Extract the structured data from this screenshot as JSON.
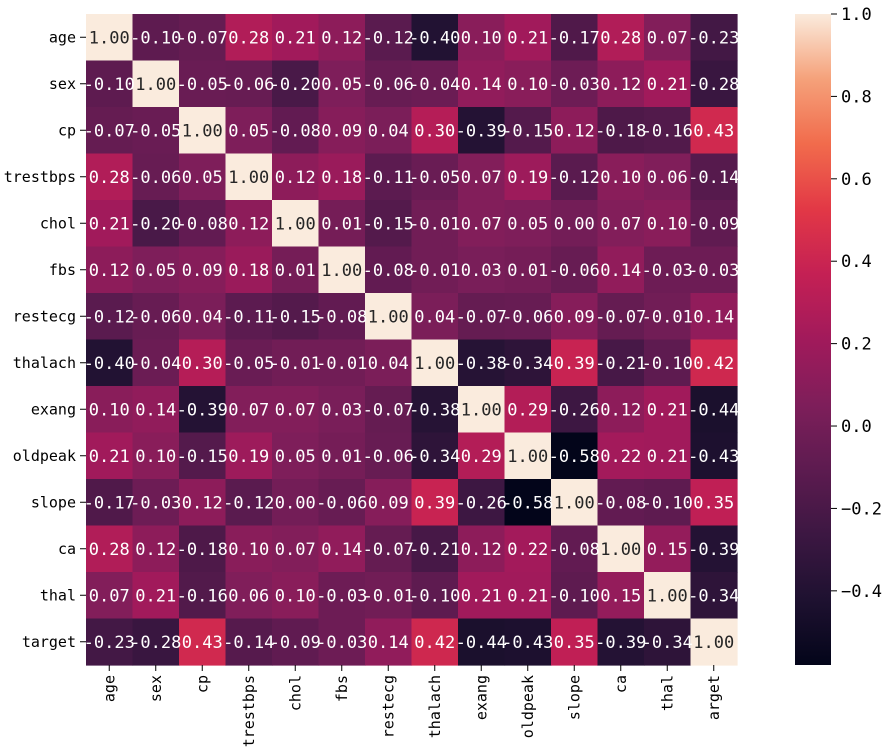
{
  "chart_data": {
    "type": "heatmap",
    "title": "",
    "xlabel": "",
    "ylabel": "",
    "x_labels": [
      "age",
      "sex",
      "cp",
      "trestbps",
      "chol",
      "fbs",
      "restecg",
      "thalach",
      "exang",
      "oldpeak",
      "slope",
      "ca",
      "thal",
      "arget"
    ],
    "y_labels": [
      "age",
      "sex",
      "cp",
      "trestbps",
      "chol",
      "fbs",
      "restecg",
      "thalach",
      "exang",
      "oldpeak",
      "slope",
      "ca",
      "thal",
      "target"
    ],
    "values": [
      [
        1.0,
        -0.1,
        -0.07,
        0.28,
        0.21,
        0.12,
        -0.12,
        -0.4,
        0.1,
        0.21,
        -0.17,
        0.28,
        0.07,
        -0.23
      ],
      [
        -0.1,
        1.0,
        -0.05,
        -0.06,
        -0.2,
        0.05,
        -0.06,
        -0.04,
        0.14,
        0.1,
        -0.03,
        0.12,
        0.21,
        -0.28
      ],
      [
        -0.07,
        -0.05,
        1.0,
        0.05,
        -0.08,
        0.09,
        0.04,
        0.3,
        -0.39,
        -0.15,
        0.12,
        -0.18,
        -0.16,
        0.43
      ],
      [
        0.28,
        -0.06,
        0.05,
        1.0,
        0.12,
        0.18,
        -0.11,
        -0.05,
        0.07,
        0.19,
        -0.12,
        0.1,
        0.06,
        -0.14
      ],
      [
        0.21,
        -0.2,
        -0.08,
        0.12,
        1.0,
        0.01,
        -0.15,
        -0.01,
        0.07,
        0.05,
        -0.0,
        0.07,
        0.1,
        -0.09
      ],
      [
        0.12,
        0.05,
        0.09,
        0.18,
        0.01,
        1.0,
        -0.08,
        -0.01,
        0.03,
        0.01,
        -0.06,
        0.14,
        -0.03,
        -0.03
      ],
      [
        -0.12,
        -0.06,
        0.04,
        -0.11,
        -0.15,
        -0.08,
        1.0,
        0.04,
        -0.07,
        -0.06,
        0.09,
        -0.07,
        -0.01,
        0.14
      ],
      [
        -0.4,
        -0.04,
        0.3,
        -0.05,
        -0.01,
        -0.01,
        0.04,
        1.0,
        -0.38,
        -0.34,
        0.39,
        -0.21,
        -0.1,
        0.42
      ],
      [
        0.1,
        0.14,
        -0.39,
        0.07,
        0.07,
        0.03,
        -0.07,
        -0.38,
        1.0,
        0.29,
        -0.26,
        0.12,
        0.21,
        -0.44
      ],
      [
        0.21,
        0.1,
        -0.15,
        0.19,
        0.05,
        0.01,
        -0.06,
        -0.34,
        0.29,
        1.0,
        -0.58,
        0.22,
        0.21,
        -0.43
      ],
      [
        -0.17,
        -0.03,
        0.12,
        -0.12,
        -0.0,
        -0.06,
        0.09,
        0.39,
        -0.26,
        -0.58,
        1.0,
        -0.08,
        -0.1,
        0.35
      ],
      [
        0.28,
        0.12,
        -0.18,
        0.1,
        0.07,
        0.14,
        -0.07,
        -0.21,
        0.12,
        0.22,
        -0.08,
        1.0,
        0.15,
        -0.39
      ],
      [
        0.07,
        0.21,
        -0.16,
        0.06,
        0.1,
        -0.03,
        -0.01,
        -0.1,
        0.21,
        0.21,
        -0.1,
        0.15,
        1.0,
        -0.34
      ],
      [
        -0.23,
        -0.28,
        0.43,
        -0.14,
        -0.09,
        -0.03,
        0.14,
        0.42,
        -0.44,
        -0.43,
        0.35,
        -0.39,
        -0.34,
        1.0
      ]
    ],
    "value_format": "2 decimals",
    "vmin": -0.58,
    "vmax": 1.0,
    "colormap": "rocket",
    "colorbar": {
      "ticks": [
        -0.4,
        -0.2,
        0.0,
        0.2,
        0.4,
        0.6,
        0.8,
        1.0
      ],
      "tick_labels": [
        "−0.4",
        "−0.2",
        "0.0",
        "0.2",
        "0.4",
        "0.6",
        "0.8",
        "1.0"
      ]
    },
    "grid": false,
    "legend": "colorbar-right"
  }
}
